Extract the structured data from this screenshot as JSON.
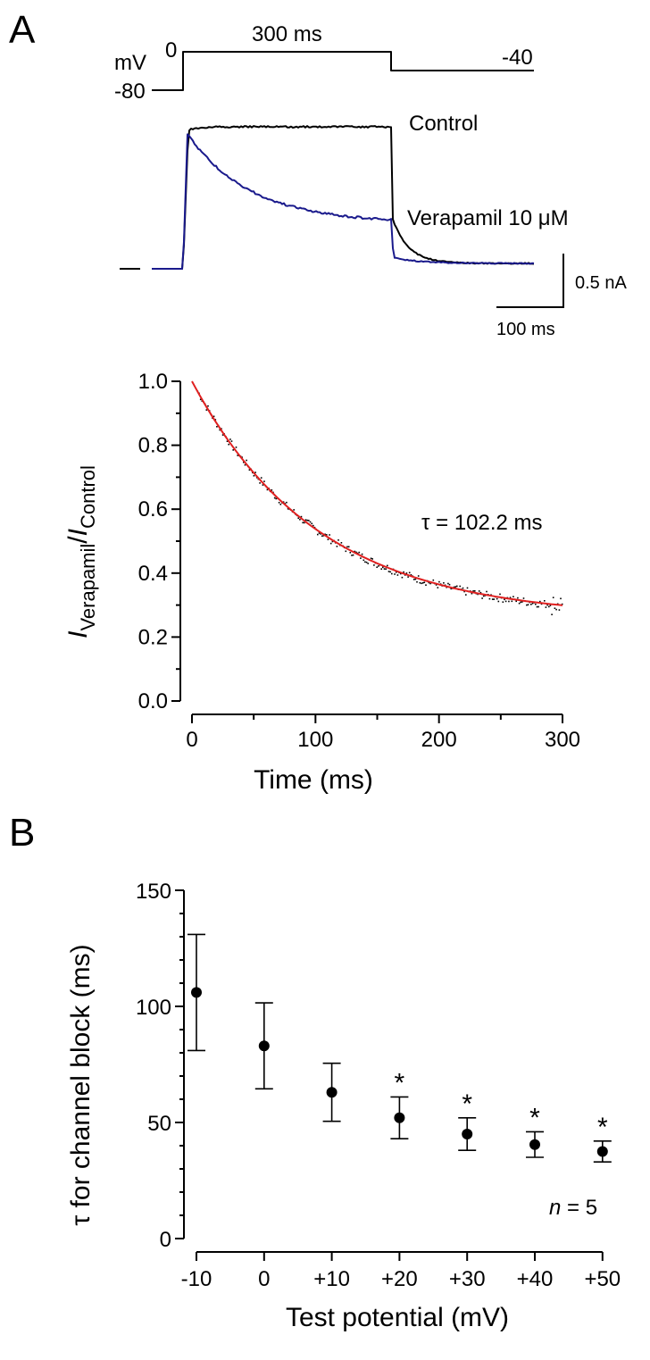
{
  "panel_a": {
    "label": "A",
    "protocol": {
      "unit_label": "mV",
      "holding_label": "-80",
      "step_label": "0",
      "duration_label": "300 ms",
      "tail_label": "-40"
    },
    "traces": {
      "control_label": "Control",
      "verapamil_label": "Verapamil 10 μM",
      "control_color": "#000000",
      "verapamil_color": "#1a1a8c"
    },
    "scale_bar": {
      "current_label": "0.5 nA",
      "time_label": "100 ms"
    }
  },
  "panel_b": {
    "label": "B"
  },
  "chart_data": [
    {
      "type": "scatter",
      "title": "",
      "xlabel": "Time (ms)",
      "ylabel_main": "I",
      "ylabel_sub1": "Verapamil",
      "ylabel_sep": "/",
      "ylabel_main2": "I",
      "ylabel_sub2": "Control",
      "xlim": [
        0,
        300
      ],
      "ylim": [
        0,
        1.0
      ],
      "xticks": [
        "0",
        "100",
        "200",
        "300"
      ],
      "yticks": [
        "0.0",
        "0.2",
        "0.4",
        "0.6",
        "0.8",
        "1.0"
      ],
      "annotation": "τ = 102.2 ms",
      "fit": {
        "tau_ms": 102.2,
        "steady": 0.26,
        "amplitude": 0.74,
        "color": "#e02020"
      },
      "series": [
        {
          "x": [
            0,
            300
          ],
          "y": [
            1.0,
            0.3
          ]
        }
      ]
    },
    {
      "type": "scatter",
      "title": "",
      "xlabel": "Test potential (mV)",
      "ylabel": "τ for channel block (ms)",
      "ylim": [
        0,
        150
      ],
      "yticks": [
        "0",
        "50",
        "100",
        "150"
      ],
      "categories": [
        "-10",
        "0",
        "+10",
        "+20",
        "+30",
        "+40",
        "+50"
      ],
      "values": [
        106,
        83,
        63,
        52,
        45,
        40.5,
        37.5
      ],
      "errors": [
        25,
        18.5,
        12.5,
        9,
        7,
        5.5,
        4.5
      ],
      "significance": [
        "",
        "",
        "",
        "*",
        "*",
        "*",
        "*"
      ],
      "annotation_italic": "n",
      "annotation_rest": " = 5"
    }
  ]
}
